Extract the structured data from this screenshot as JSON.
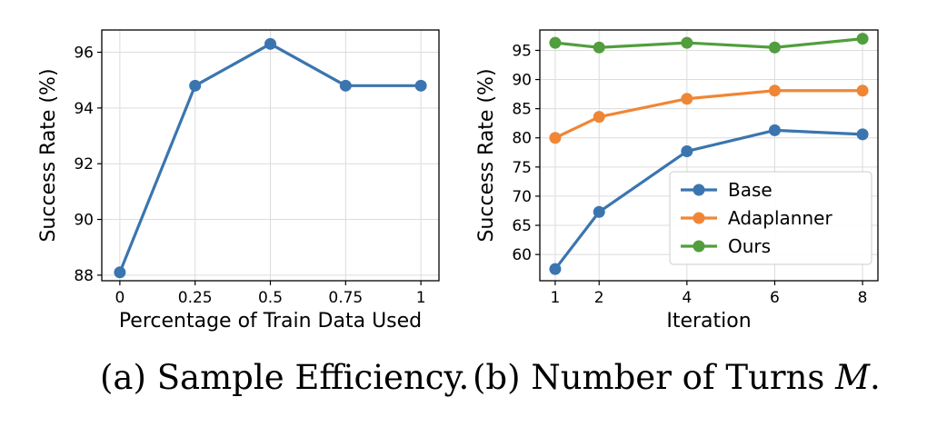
{
  "chart_data": [
    {
      "type": "line",
      "title": "",
      "xlabel": "Percentage of Train Data Used",
      "ylabel": "Success Rate (%)",
      "xlim": [
        -0.06,
        1.06
      ],
      "ylim": [
        87.8,
        96.8
      ],
      "x_ticks": [
        0,
        0.25,
        0.5,
        0.75,
        1
      ],
      "x_tick_labels": [
        "0",
        "0.25",
        "0.5",
        "0.75",
        "1"
      ],
      "y_ticks": [
        88,
        90,
        92,
        94,
        96
      ],
      "grid": true,
      "series": [
        {
          "color": "#3b75af",
          "x": [
            0,
            0.25,
            0.5,
            0.75,
            1
          ],
          "values": [
            88.1,
            94.8,
            96.3,
            94.8,
            94.8
          ]
        }
      ]
    },
    {
      "type": "line",
      "title": "",
      "xlabel": "Iteration",
      "ylabel": "Success Rate (%)",
      "xlim": [
        0.65,
        8.35
      ],
      "ylim": [
        55.5,
        98.5
      ],
      "x_ticks": [
        1,
        2,
        4,
        6,
        8
      ],
      "y_ticks": [
        60,
        65,
        70,
        75,
        80,
        85,
        90,
        95
      ],
      "grid": true,
      "legend_position": "lower-right",
      "series": [
        {
          "name": "Base",
          "color": "#3b75af",
          "x": [
            1,
            2,
            4,
            6,
            8
          ],
          "values": [
            57.5,
            67.3,
            77.7,
            81.3,
            80.6
          ]
        },
        {
          "name": "Adaplanner",
          "color": "#ef8636",
          "x": [
            1,
            2,
            4,
            6,
            8
          ],
          "values": [
            80.0,
            83.6,
            86.7,
            88.1,
            88.1
          ]
        },
        {
          "name": "Ours",
          "color": "#519e3e",
          "x": [
            1,
            2,
            4,
            6,
            8
          ],
          "values": [
            96.3,
            95.5,
            96.3,
            95.5,
            97.0
          ]
        }
      ]
    }
  ],
  "captions": {
    "a": "(a) Sample Efficiency.",
    "b_prefix": "(b) Number of Turns ",
    "b_var": "M",
    "b_suffix": "."
  }
}
